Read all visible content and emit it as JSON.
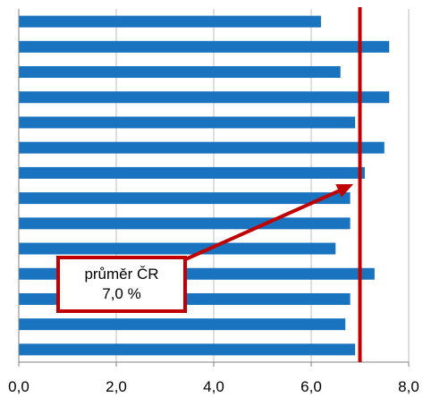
{
  "chart_data": {
    "type": "bar",
    "orientation": "horizontal",
    "values": [
      6.2,
      7.6,
      6.6,
      7.6,
      6.9,
      7.5,
      7.1,
      6.8,
      6.8,
      6.5,
      7.3,
      6.8,
      6.7,
      6.9
    ],
    "xlim": [
      0,
      8
    ],
    "xticks": [
      0,
      2,
      4,
      6,
      8
    ],
    "xtick_labels": [
      "0,0",
      "2,0",
      "4,0",
      "6,0",
      "8,0"
    ],
    "grid": "vertical",
    "bar_color": "#1a73bf",
    "reference_line": {
      "value": 7.0,
      "color": "#c00000"
    },
    "annotation": {
      "line1": "průměr ČR",
      "line2": "7,0 %",
      "border_color": "#c00000",
      "arrow_color": "#c00000"
    }
  }
}
